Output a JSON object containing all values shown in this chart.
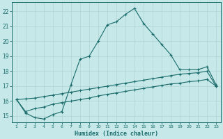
{
  "xlabel": "Humidex (Indice chaleur)",
  "bg_color": "#c6e8e8",
  "line_color": "#1a6b6b",
  "grid_color": "#aed4d4",
  "xlim": [
    0.5,
    23.5
  ],
  "ylim": [
    14.6,
    22.6
  ],
  "xticks": [
    1,
    2,
    3,
    4,
    5,
    6,
    7,
    8,
    9,
    10,
    11,
    12,
    13,
    14,
    15,
    16,
    17,
    18,
    19,
    20,
    21,
    22,
    23
  ],
  "yticks": [
    15,
    16,
    17,
    18,
    19,
    20,
    21,
    22
  ],
  "line1_x": [
    1,
    2,
    3,
    4,
    5,
    6,
    7,
    8,
    9,
    10,
    11,
    12,
    13,
    14,
    15,
    16,
    17,
    18,
    19,
    20,
    21,
    22,
    23
  ],
  "line1_y": [
    16.1,
    15.2,
    14.9,
    14.8,
    15.1,
    15.3,
    17.1,
    18.8,
    19.0,
    20.0,
    21.1,
    21.3,
    21.8,
    22.2,
    21.2,
    20.5,
    19.8,
    19.1,
    18.1,
    18.1,
    18.1,
    18.3,
    17.1
  ],
  "line2_x": [
    1,
    2,
    3,
    4,
    5,
    6,
    7,
    8,
    9,
    10,
    11,
    12,
    13,
    14,
    15,
    16,
    17,
    18,
    19,
    20,
    21,
    22,
    23
  ],
  "line2_y": [
    16.1,
    16.15,
    16.2,
    16.3,
    16.4,
    16.5,
    16.6,
    16.7,
    16.8,
    16.9,
    17.0,
    17.1,
    17.2,
    17.3,
    17.4,
    17.5,
    17.6,
    17.7,
    17.8,
    17.85,
    17.9,
    18.0,
    17.0
  ],
  "line3_x": [
    1,
    2,
    3,
    4,
    5,
    6,
    7,
    8,
    9,
    10,
    11,
    12,
    13,
    14,
    15,
    16,
    17,
    18,
    19,
    20,
    21,
    22,
    23
  ],
  "line3_y": [
    16.1,
    15.3,
    15.5,
    15.6,
    15.8,
    15.9,
    16.0,
    16.1,
    16.2,
    16.35,
    16.45,
    16.55,
    16.65,
    16.75,
    16.85,
    16.95,
    17.05,
    17.15,
    17.2,
    17.3,
    17.35,
    17.45,
    17.0
  ]
}
